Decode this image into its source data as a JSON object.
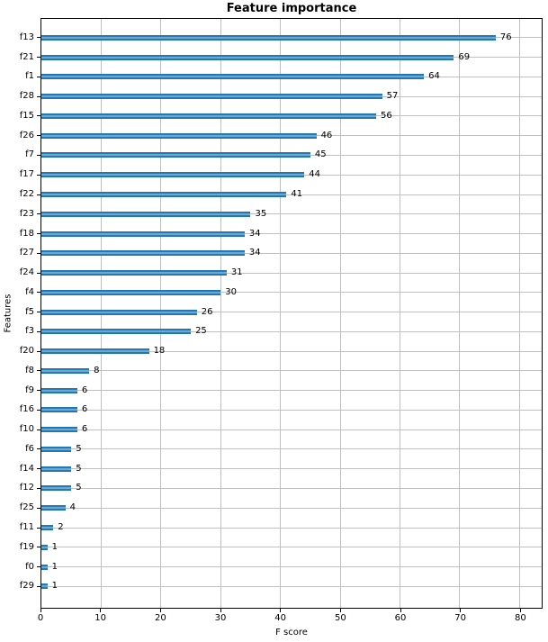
{
  "chart_data": {
    "type": "bar",
    "orientation": "horizontal",
    "title": "Feature importance",
    "xlabel": "F score",
    "ylabel": "Features",
    "categories": [
      "f13",
      "f21",
      "f1",
      "f28",
      "f15",
      "f26",
      "f7",
      "f17",
      "f22",
      "f23",
      "f18",
      "f27",
      "f24",
      "f4",
      "f5",
      "f3",
      "f20",
      "f8",
      "f9",
      "f16",
      "f10",
      "f6",
      "f14",
      "f12",
      "f25",
      "f11",
      "f19",
      "f0",
      "f29"
    ],
    "values": [
      76,
      69,
      64,
      57,
      56,
      46,
      45,
      44,
      41,
      35,
      34,
      34,
      31,
      30,
      26,
      25,
      18,
      8,
      6,
      6,
      6,
      5,
      5,
      5,
      4,
      2,
      1,
      1,
      1
    ],
    "value_labels": [
      "76",
      "69",
      "64",
      "57",
      "56",
      "46",
      "45",
      "44",
      "41",
      "35",
      "34",
      "34",
      "31",
      "30",
      "26",
      "25",
      "18",
      "8",
      "6",
      "6",
      "6",
      "5",
      "5",
      "5",
      "4",
      "2",
      "1",
      "1",
      "1"
    ],
    "xticks": [
      0,
      10,
      20,
      30,
      40,
      50,
      60,
      70,
      80
    ],
    "xlim": [
      0,
      83.7
    ],
    "grid": true,
    "legend": false,
    "bar_color": "#1f77b4",
    "bar_color_light": "#7fb0d3",
    "grid_color": "#c0c0c0",
    "spine_color": "#000000",
    "background_color": "#ffffff"
  }
}
